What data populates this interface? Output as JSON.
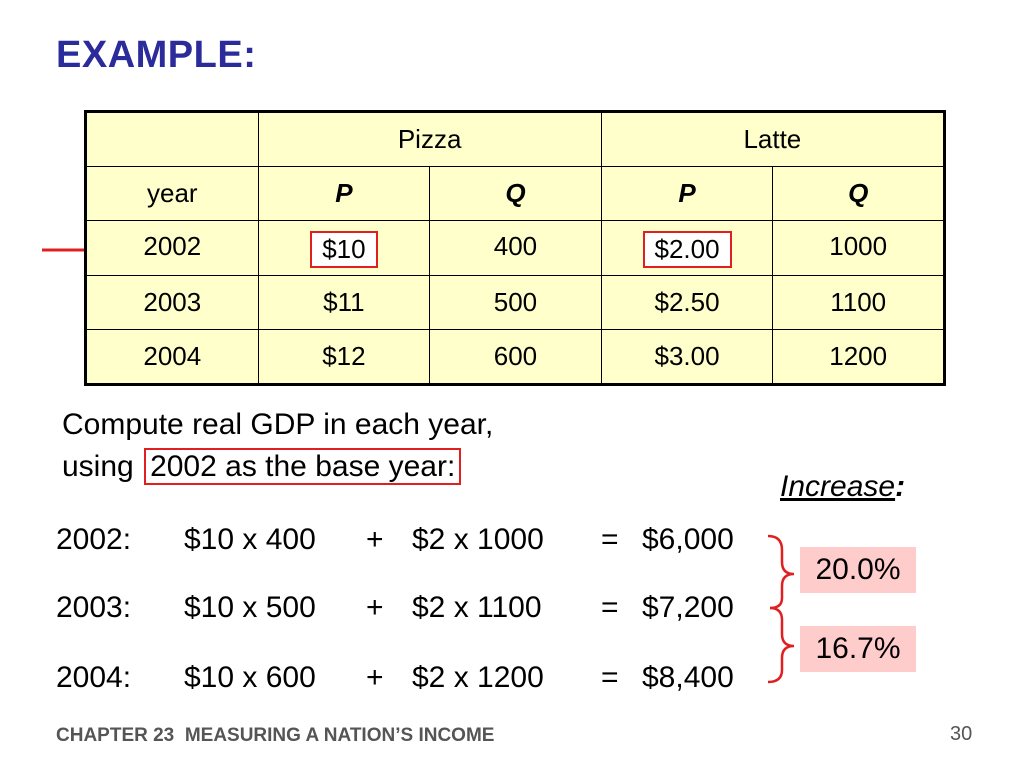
{
  "title": "EXAMPLE:",
  "table": {
    "group_headers": [
      "Pizza",
      "Latte"
    ],
    "year_label": "year",
    "sub_headers": [
      "P",
      "Q",
      "P",
      "Q"
    ],
    "rows": [
      [
        "2002",
        "$10",
        "400",
        "$2.00",
        "1000"
      ],
      [
        "2003",
        "$11",
        "500",
        "$2.50",
        "1100"
      ],
      [
        "2004",
        "$12",
        "600",
        "$3.00",
        "1200"
      ]
    ]
  },
  "prompt": {
    "line1": "Compute real GDP in each year,",
    "line2_prefix": "using",
    "line2_boxed": "2002 as the base year:"
  },
  "increase": {
    "label": "Increase",
    "colon": ":"
  },
  "equations": [
    {
      "year": "2002:",
      "term1": "$10 x 400",
      "plus": "+",
      "term2": "$2 x 1000",
      "equals": "=",
      "total": "$6,000"
    },
    {
      "year": "2003:",
      "term1": "$10 x 500",
      "plus": "+",
      "term2": "$2 x 1100",
      "equals": "=",
      "total": "$7,200"
    },
    {
      "year": "2004:",
      "term1": "$10 x 600",
      "plus": "+",
      "term2": "$2 x 1200",
      "equals": "=",
      "total": "$8,400"
    }
  ],
  "percent_increases": [
    "20.0%",
    "16.7%"
  ],
  "footer": {
    "chapter": "CHAPTER 23",
    "chapter_title": "MEASURING A NATION’S INCOME",
    "page": "30"
  },
  "colors": {
    "title": "#2b2b9c",
    "highlight_border": "#e02020",
    "table_bg": "#ffffcc",
    "pct_bg": "#ffcccc"
  }
}
